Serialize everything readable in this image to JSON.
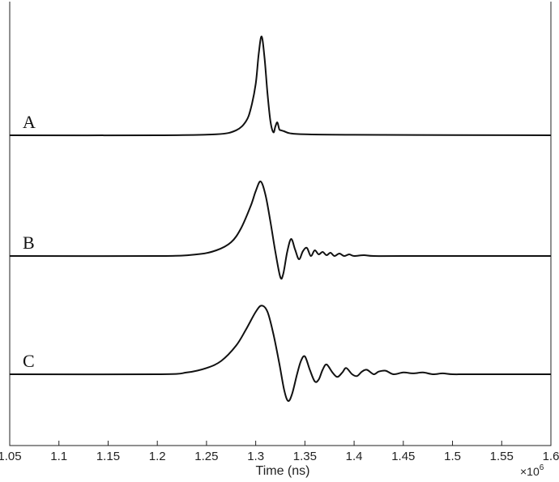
{
  "chart_data": {
    "type": "line",
    "xlabel": "Time (ns)",
    "x_multiplier_base": "×10",
    "x_multiplier_exponent": "6",
    "xlim": [
      1.05,
      1.6
    ],
    "xticks": [
      "1.05",
      "1.1",
      "1.15",
      "1.2",
      "1.25",
      "1.3",
      "1.35",
      "1.4",
      "1.45",
      "1.5",
      "1.55",
      "1.6"
    ],
    "grid": false,
    "series": [
      {
        "name": "A",
        "baseline": 0,
        "points": [
          [
            1.05,
            0
          ],
          [
            1.2,
            0
          ],
          [
            1.26,
            0.01
          ],
          [
            1.28,
            0.05
          ],
          [
            1.29,
            0.14
          ],
          [
            1.295,
            0.27
          ],
          [
            1.3,
            0.52
          ],
          [
            1.303,
            0.82
          ],
          [
            1.306,
            1.0
          ],
          [
            1.309,
            0.78
          ],
          [
            1.312,
            0.42
          ],
          [
            1.315,
            0.14
          ],
          [
            1.318,
            0.03
          ],
          [
            1.32,
            0.09
          ],
          [
            1.322,
            0.13
          ],
          [
            1.324,
            0.06
          ],
          [
            1.326,
            0.05
          ],
          [
            1.329,
            0.04
          ],
          [
            1.335,
            0.02
          ],
          [
            1.35,
            0.01
          ],
          [
            1.4,
            0.005
          ],
          [
            1.6,
            0
          ]
        ]
      },
      {
        "name": "B",
        "baseline": 0,
        "points": [
          [
            1.05,
            0
          ],
          [
            1.2,
            0
          ],
          [
            1.24,
            0.02
          ],
          [
            1.26,
            0.07
          ],
          [
            1.275,
            0.17
          ],
          [
            1.285,
            0.34
          ],
          [
            1.295,
            0.62
          ],
          [
            1.3,
            0.8
          ],
          [
            1.305,
            0.92
          ],
          [
            1.31,
            0.75
          ],
          [
            1.315,
            0.42
          ],
          [
            1.32,
            0.05
          ],
          [
            1.325,
            -0.26
          ],
          [
            1.328,
            -0.22
          ],
          [
            1.332,
            0.05
          ],
          [
            1.336,
            0.21
          ],
          [
            1.34,
            0.08
          ],
          [
            1.344,
            -0.04
          ],
          [
            1.348,
            0.06
          ],
          [
            1.352,
            0.1
          ],
          [
            1.356,
            0.0
          ],
          [
            1.36,
            0.07
          ],
          [
            1.364,
            0.02
          ],
          [
            1.368,
            0.05
          ],
          [
            1.372,
            0.01
          ],
          [
            1.376,
            0.04
          ],
          [
            1.38,
            0.0
          ],
          [
            1.385,
            0.03
          ],
          [
            1.39,
            0.0
          ],
          [
            1.395,
            0.02
          ],
          [
            1.4,
            0.0
          ],
          [
            1.41,
            0.01
          ],
          [
            1.42,
            0.0
          ],
          [
            1.45,
            0.0
          ],
          [
            1.6,
            0
          ]
        ]
      },
      {
        "name": "C",
        "baseline": 0,
        "points": [
          [
            1.05,
            0
          ],
          [
            1.2,
            0
          ],
          [
            1.23,
            0.02
          ],
          [
            1.25,
            0.07
          ],
          [
            1.265,
            0.15
          ],
          [
            1.28,
            0.32
          ],
          [
            1.29,
            0.5
          ],
          [
            1.3,
            0.7
          ],
          [
            1.306,
            0.77
          ],
          [
            1.312,
            0.7
          ],
          [
            1.318,
            0.45
          ],
          [
            1.324,
            0.12
          ],
          [
            1.329,
            -0.18
          ],
          [
            1.333,
            -0.3
          ],
          [
            1.337,
            -0.22
          ],
          [
            1.342,
            0.0
          ],
          [
            1.346,
            0.15
          ],
          [
            1.35,
            0.2
          ],
          [
            1.355,
            0.05
          ],
          [
            1.36,
            -0.08
          ],
          [
            1.364,
            -0.06
          ],
          [
            1.368,
            0.05
          ],
          [
            1.372,
            0.11
          ],
          [
            1.378,
            0.02
          ],
          [
            1.383,
            -0.03
          ],
          [
            1.388,
            0.02
          ],
          [
            1.392,
            0.07
          ],
          [
            1.398,
            0.0
          ],
          [
            1.403,
            -0.02
          ],
          [
            1.408,
            0.03
          ],
          [
            1.413,
            0.05
          ],
          [
            1.42,
            0.0
          ],
          [
            1.425,
            0.03
          ],
          [
            1.432,
            0.04
          ],
          [
            1.44,
            0.0
          ],
          [
            1.45,
            0.02
          ],
          [
            1.46,
            0.01
          ],
          [
            1.47,
            0.02
          ],
          [
            1.48,
            0.0
          ],
          [
            1.49,
            0.01
          ],
          [
            1.5,
            0.0
          ],
          [
            1.52,
            0.0
          ],
          [
            1.6,
            0
          ]
        ]
      }
    ]
  }
}
